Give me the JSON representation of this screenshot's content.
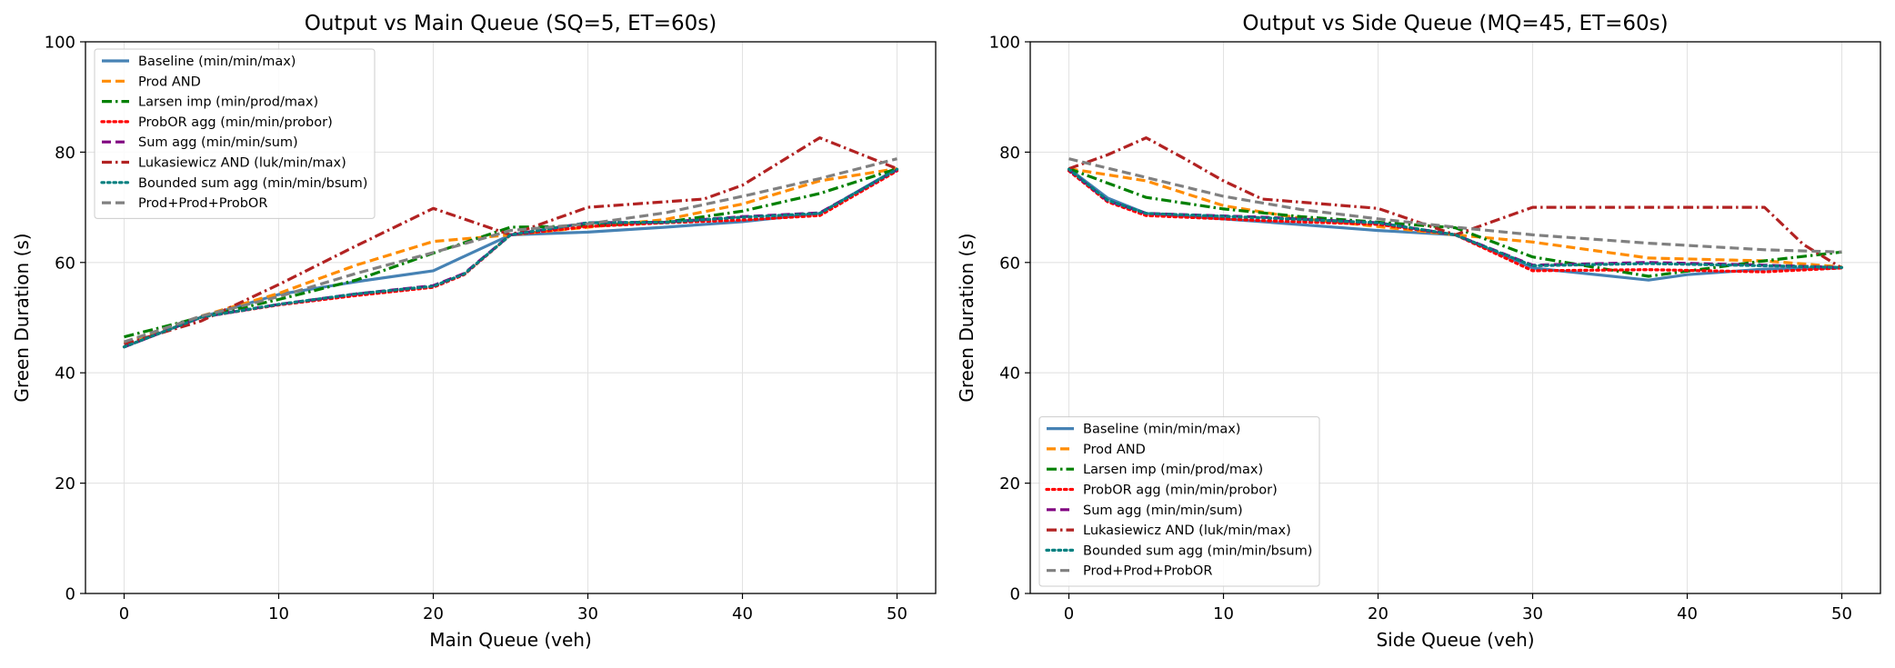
{
  "chart_data": [
    {
      "type": "line",
      "title": "Output vs Main Queue (SQ=5, ET=60s)",
      "xlabel": "Main Queue (veh)",
      "ylabel": "Green Duration (s)",
      "xlim": [
        -2.5,
        52.5
      ],
      "ylim": [
        0,
        100
      ],
      "xticks": [
        0,
        10,
        20,
        30,
        40,
        50
      ],
      "yticks": [
        0,
        20,
        40,
        60,
        80,
        100
      ],
      "grid": true,
      "legend_position": "top-left",
      "series": [
        {
          "name": "Baseline (min/min/max)",
          "color": "#4682b4",
          "style": "solid",
          "x": [
            0,
            5,
            10,
            15,
            20,
            25,
            30,
            35,
            40,
            45,
            50
          ],
          "y": [
            44.7,
            50.1,
            54.2,
            56.5,
            58.5,
            65.0,
            65.5,
            66.4,
            67.4,
            68.9,
            77.0
          ]
        },
        {
          "name": "Prod AND",
          "color": "#ff8c00",
          "style": "dashed",
          "x": [
            0,
            5,
            10,
            15,
            20,
            25,
            30,
            35,
            40,
            45,
            50
          ],
          "y": [
            45.4,
            50.3,
            54.4,
            59.5,
            63.8,
            65.0,
            66.4,
            67.8,
            70.6,
            74.8,
            77.0
          ]
        },
        {
          "name": "Larsen imp (min/prod/max)",
          "color": "#008000",
          "style": "dashdot",
          "x": [
            0,
            5,
            10,
            15,
            20,
            25,
            30,
            35,
            40,
            45,
            50
          ],
          "y": [
            46.5,
            50.1,
            53.3,
            56.8,
            61.7,
            66.4,
            66.6,
            67.3,
            69.3,
            72.5,
            77.0
          ]
        },
        {
          "name": "ProbOR agg (min/min/probor)",
          "color": "#ff0000",
          "style": "dotted",
          "x": [
            0,
            5,
            10,
            15,
            20,
            22,
            25,
            30,
            35,
            40,
            45,
            50
          ],
          "y": [
            44.7,
            50.1,
            52.3,
            54.0,
            55.5,
            57.8,
            65.0,
            66.5,
            67.2,
            67.7,
            68.5,
            76.6
          ]
        },
        {
          "name": "Sum agg (min/min/sum)",
          "color": "#800080",
          "style": "dashed",
          "x": [
            0,
            5,
            10,
            15,
            20,
            22,
            25,
            30,
            35,
            40,
            45,
            50
          ],
          "y": [
            44.7,
            50.1,
            52.4,
            54.3,
            55.8,
            58.0,
            65.0,
            67.2,
            67.3,
            68.3,
            69.0,
            76.8
          ]
        },
        {
          "name": "Lukasiewicz AND (luk/min/max)",
          "color": "#b22222",
          "style": "dashdot",
          "x": [
            0,
            5,
            10,
            15,
            20,
            25,
            30,
            37.5,
            40,
            45,
            50
          ],
          "y": [
            45.2,
            49.4,
            56.0,
            63.0,
            69.8,
            65.0,
            70.0,
            71.5,
            74.0,
            82.6,
            77.0
          ]
        },
        {
          "name": "Bounded sum agg (min/min/bsum)",
          "color": "#008080",
          "style": "dotted",
          "x": [
            0,
            5,
            10,
            15,
            20,
            22,
            25,
            30,
            35,
            40,
            45,
            50
          ],
          "y": [
            44.7,
            50.1,
            52.4,
            54.3,
            55.7,
            57.9,
            65.0,
            67.2,
            67.3,
            68.2,
            68.9,
            76.9
          ]
        },
        {
          "name": "Prod+Prod+ProbOR",
          "color": "#808080",
          "style": "dashed",
          "x": [
            0,
            5,
            10,
            15,
            20,
            25,
            30,
            35,
            40,
            45,
            50
          ],
          "y": [
            45.6,
            50.3,
            53.8,
            58.0,
            61.8,
            65.8,
            67.0,
            69.0,
            72.0,
            75.2,
            78.8
          ]
        }
      ]
    },
    {
      "type": "line",
      "title": "Output vs Side Queue (MQ=45, ET=60s)",
      "xlabel": "Side Queue (veh)",
      "ylabel": "Green Duration (s)",
      "xlim": [
        -2.5,
        52.5
      ],
      "ylim": [
        0,
        100
      ],
      "xticks": [
        0,
        10,
        20,
        30,
        40,
        50
      ],
      "yticks": [
        0,
        20,
        40,
        60,
        80,
        100
      ],
      "grid": true,
      "legend_position": "bottom-left",
      "series": [
        {
          "name": "Baseline (min/min/max)",
          "color": "#4682b4",
          "style": "solid",
          "x": [
            0,
            2.5,
            5,
            12.5,
            20,
            25,
            30,
            37.5,
            40,
            45,
            50
          ],
          "y": [
            77.0,
            71.7,
            68.9,
            67.4,
            65.8,
            65.0,
            59.0,
            56.8,
            57.8,
            58.8,
            59.0
          ]
        },
        {
          "name": "Prod AND",
          "color": "#ff8c00",
          "style": "dashed",
          "x": [
            0,
            5,
            10,
            15,
            20,
            25,
            30,
            37.5,
            45,
            50
          ],
          "y": [
            77.0,
            74.8,
            70.3,
            68.0,
            66.5,
            65.0,
            63.7,
            60.8,
            60.3,
            59.2
          ]
        },
        {
          "name": "Larsen imp (min/prod/max)",
          "color": "#008000",
          "style": "dashdot",
          "x": [
            0,
            5,
            10,
            15,
            20,
            25,
            30,
            37.5,
            45,
            50
          ],
          "y": [
            77.0,
            71.8,
            69.7,
            68.3,
            67.3,
            66.3,
            61.0,
            57.5,
            60.3,
            61.9
          ]
        },
        {
          "name": "ProbOR agg (min/min/probor)",
          "color": "#ff0000",
          "style": "dotted",
          "x": [
            0,
            2.5,
            5,
            12.5,
            20,
            25,
            30,
            37.5,
            45,
            50
          ],
          "y": [
            76.6,
            71.0,
            68.5,
            67.6,
            66.9,
            65.0,
            58.5,
            58.7,
            58.3,
            59.0
          ]
        },
        {
          "name": "Sum agg (min/min/sum)",
          "color": "#800080",
          "style": "dashed",
          "x": [
            0,
            2.5,
            5,
            12.5,
            20,
            25,
            30,
            37.5,
            45,
            50
          ],
          "y": [
            76.8,
            71.2,
            68.9,
            68.2,
            67.2,
            65.0,
            59.5,
            60.0,
            59.5,
            59.1
          ]
        },
        {
          "name": "Lukasiewicz AND (luk/min/max)",
          "color": "#b22222",
          "style": "dashdot",
          "x": [
            0,
            2.5,
            5,
            7.5,
            10,
            12.5,
            20,
            25,
            30,
            37.5,
            45,
            47.5,
            50
          ],
          "y": [
            77.0,
            79.5,
            82.6,
            78.8,
            74.8,
            71.5,
            69.8,
            65.0,
            70.0,
            70.0,
            70.0,
            63.3,
            59.0
          ]
        },
        {
          "name": "Bounded sum agg (min/min/bsum)",
          "color": "#008080",
          "style": "dotted",
          "x": [
            0,
            2.5,
            5,
            12.5,
            20,
            25,
            30,
            37.5,
            45,
            50
          ],
          "y": [
            76.9,
            71.3,
            68.9,
            68.1,
            67.2,
            65.0,
            59.4,
            59.8,
            59.4,
            59.1
          ]
        },
        {
          "name": "Prod+Prod+ProbOR",
          "color": "#808080",
          "style": "dashed",
          "x": [
            0,
            5,
            10,
            15,
            20,
            25,
            30,
            37.5,
            45,
            50
          ],
          "y": [
            78.8,
            75.4,
            72.0,
            69.6,
            67.9,
            66.4,
            65.0,
            63.5,
            62.3,
            61.9
          ]
        }
      ]
    }
  ]
}
